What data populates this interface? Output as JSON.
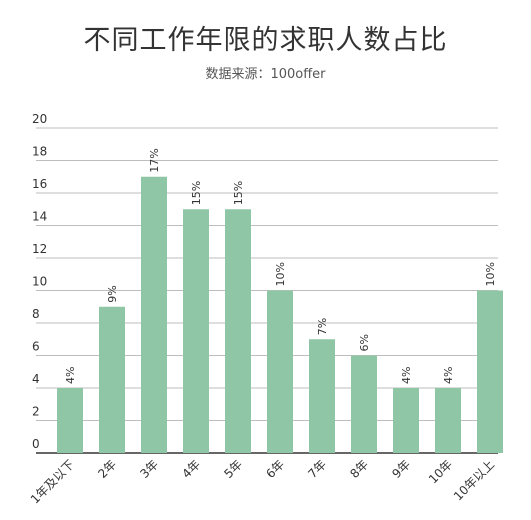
{
  "chart_data": {
    "type": "bar",
    "title": "不同工作年限的求职人数占比",
    "subtitle": "数据来源：100offer",
    "categories": [
      "1年及以下",
      "2年",
      "3年",
      "4年",
      "5年",
      "6年",
      "7年",
      "8年",
      "9年",
      "10年",
      "10年以上"
    ],
    "values": [
      4,
      9,
      17,
      15,
      15,
      10,
      7,
      6,
      4,
      4,
      10
    ],
    "data_labels": [
      "4%",
      "9%",
      "17%",
      "15%",
      "15%",
      "10%",
      "7%",
      "6%",
      "4%",
      "4%",
      "10%"
    ],
    "yticks": [
      "0",
      "2",
      "4",
      "6",
      "8",
      "10",
      "12",
      "14",
      "16",
      "18",
      "20"
    ],
    "ylim": [
      0,
      20
    ],
    "grid": true,
    "bar_color": "#8fc6a5",
    "grid_color": "#bdbdbd",
    "axis_color": "#333333"
  }
}
